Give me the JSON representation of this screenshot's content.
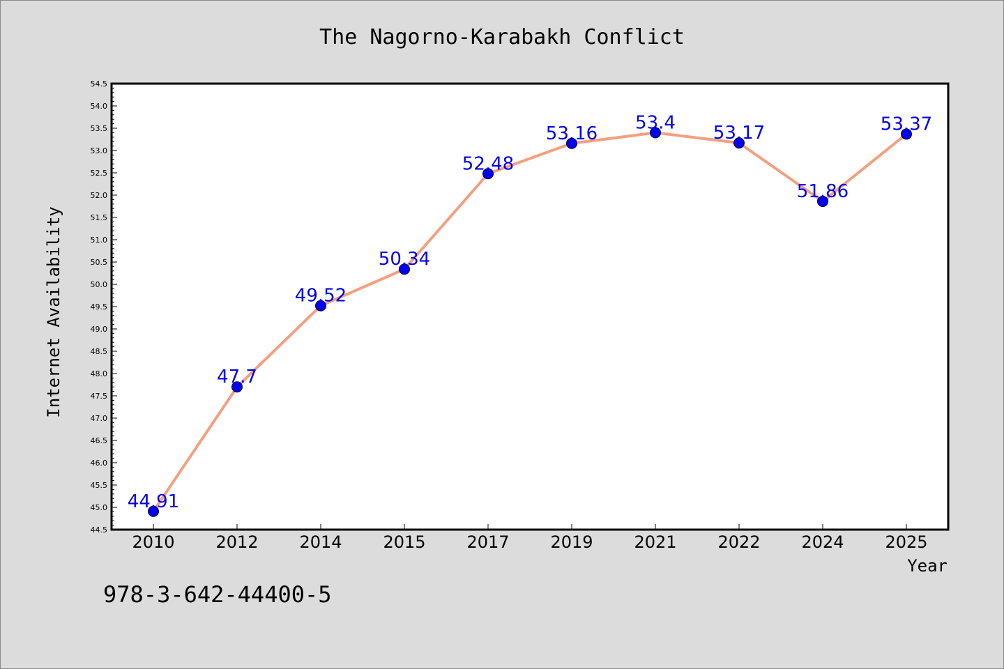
{
  "chart_data": {
    "type": "line",
    "title": "The Nagorno-Karabakh Conflict",
    "xlabel": "Year",
    "ylabel": "Internet Availability",
    "categories": [
      "2010",
      "2012",
      "2014",
      "2015",
      "2017",
      "2019",
      "2021",
      "2022",
      "2024",
      "2025"
    ],
    "values": [
      44.91,
      47.7,
      49.52,
      50.34,
      52.48,
      53.16,
      53.4,
      53.17,
      51.86,
      53.37
    ],
    "value_labels": [
      "44.91",
      "47.7",
      "49.52",
      "50.34",
      "52.48",
      "53.16",
      "53.4",
      "53.17",
      "51.86",
      "53.37"
    ],
    "ylim": [
      44.5,
      54.5
    ],
    "yticks": [
      "44.5",
      "45.0",
      "45.5",
      "46.0",
      "46.5",
      "47.0",
      "47.5",
      "48.0",
      "48.5",
      "49.0",
      "49.5",
      "50.0",
      "50.5",
      "51.0",
      "51.5",
      "52.0",
      "52.5",
      "53.0",
      "53.5",
      "54.0",
      "54.5"
    ],
    "grid": false,
    "line_color": "#f4a080",
    "marker_color": "#0000ee",
    "label_color": "#0000ee"
  },
  "footer": {
    "isbn": "978-3-642-44400-5"
  },
  "colors": {
    "background": "#dcdcdc",
    "plot_area": "#ffffff"
  }
}
